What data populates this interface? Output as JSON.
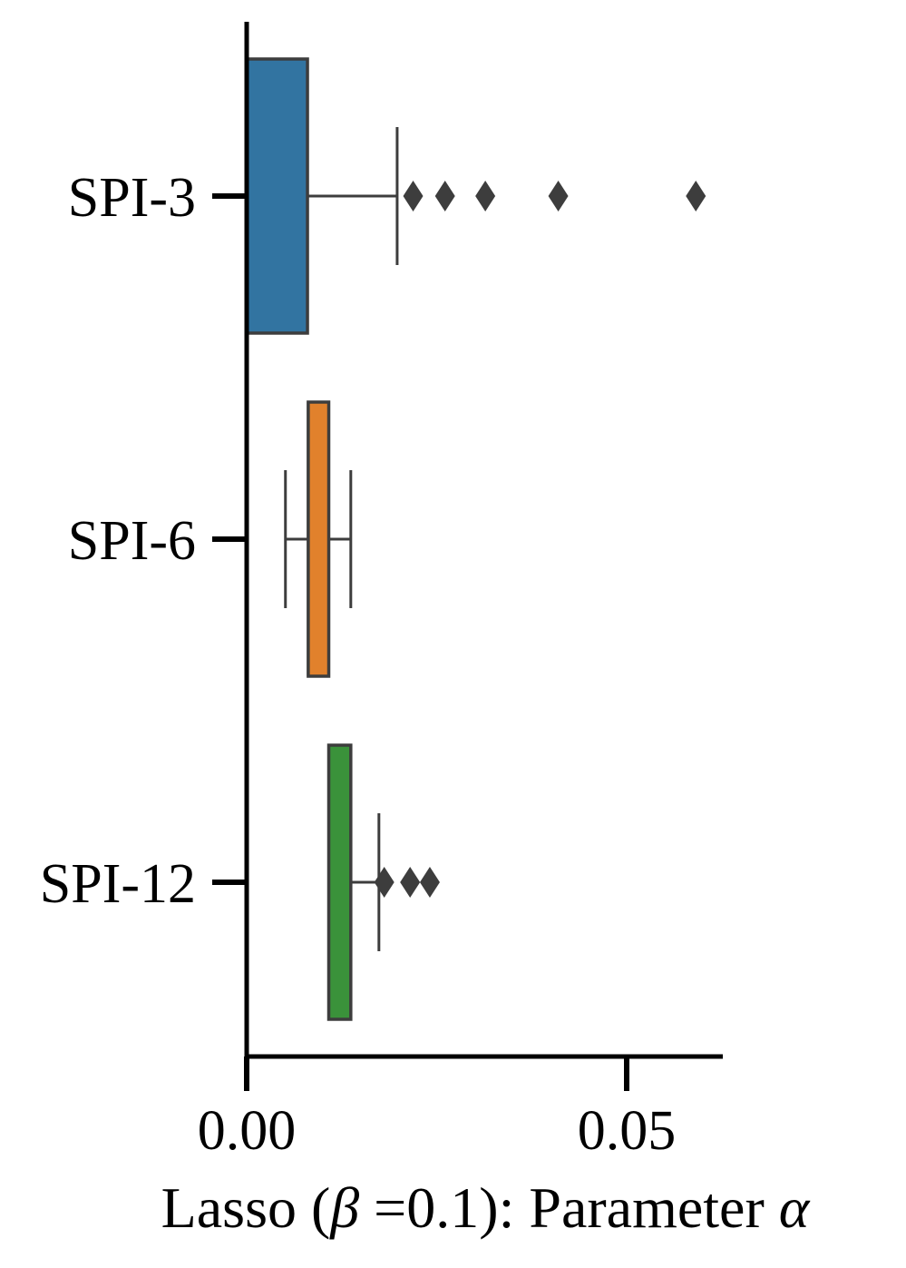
{
  "chart_data": {
    "type": "boxplot",
    "orientation": "horizontal",
    "xlabel": {
      "prefix": "Lasso (",
      "beta": "β",
      "middle": " =0.1): Parameter ",
      "alpha": "α"
    },
    "xlim": [
      0.0,
      0.0627
    ],
    "xticks": [
      0.0,
      0.05
    ],
    "xtick_labels": [
      "0.00",
      "0.05"
    ],
    "categories": [
      "SPI-3",
      "SPI-6",
      "SPI-12"
    ],
    "series": [
      {
        "category": "SPI-3",
        "color": "#3274a1",
        "whisker_low": 0.0,
        "q1": 0.0,
        "median": 0.0,
        "q3": 0.008,
        "whisker_high": 0.0198,
        "outliers": [
          0.0219,
          0.0261,
          0.0314,
          0.041,
          0.0591
        ]
      },
      {
        "category": "SPI-6",
        "color": "#e1812c",
        "whisker_low": 0.0051,
        "q1": 0.0081,
        "median": 0.0081,
        "q3": 0.0108,
        "whisker_high": 0.0137,
        "outliers": []
      },
      {
        "category": "SPI-12",
        "color": "#3a923a",
        "whisker_low": 0.0108,
        "q1": 0.0108,
        "median": 0.0108,
        "q3": 0.0137,
        "whisker_high": 0.0174,
        "outliers": [
          0.0181,
          0.0215,
          0.0241
        ]
      }
    ],
    "grid": false,
    "legend": "none"
  }
}
